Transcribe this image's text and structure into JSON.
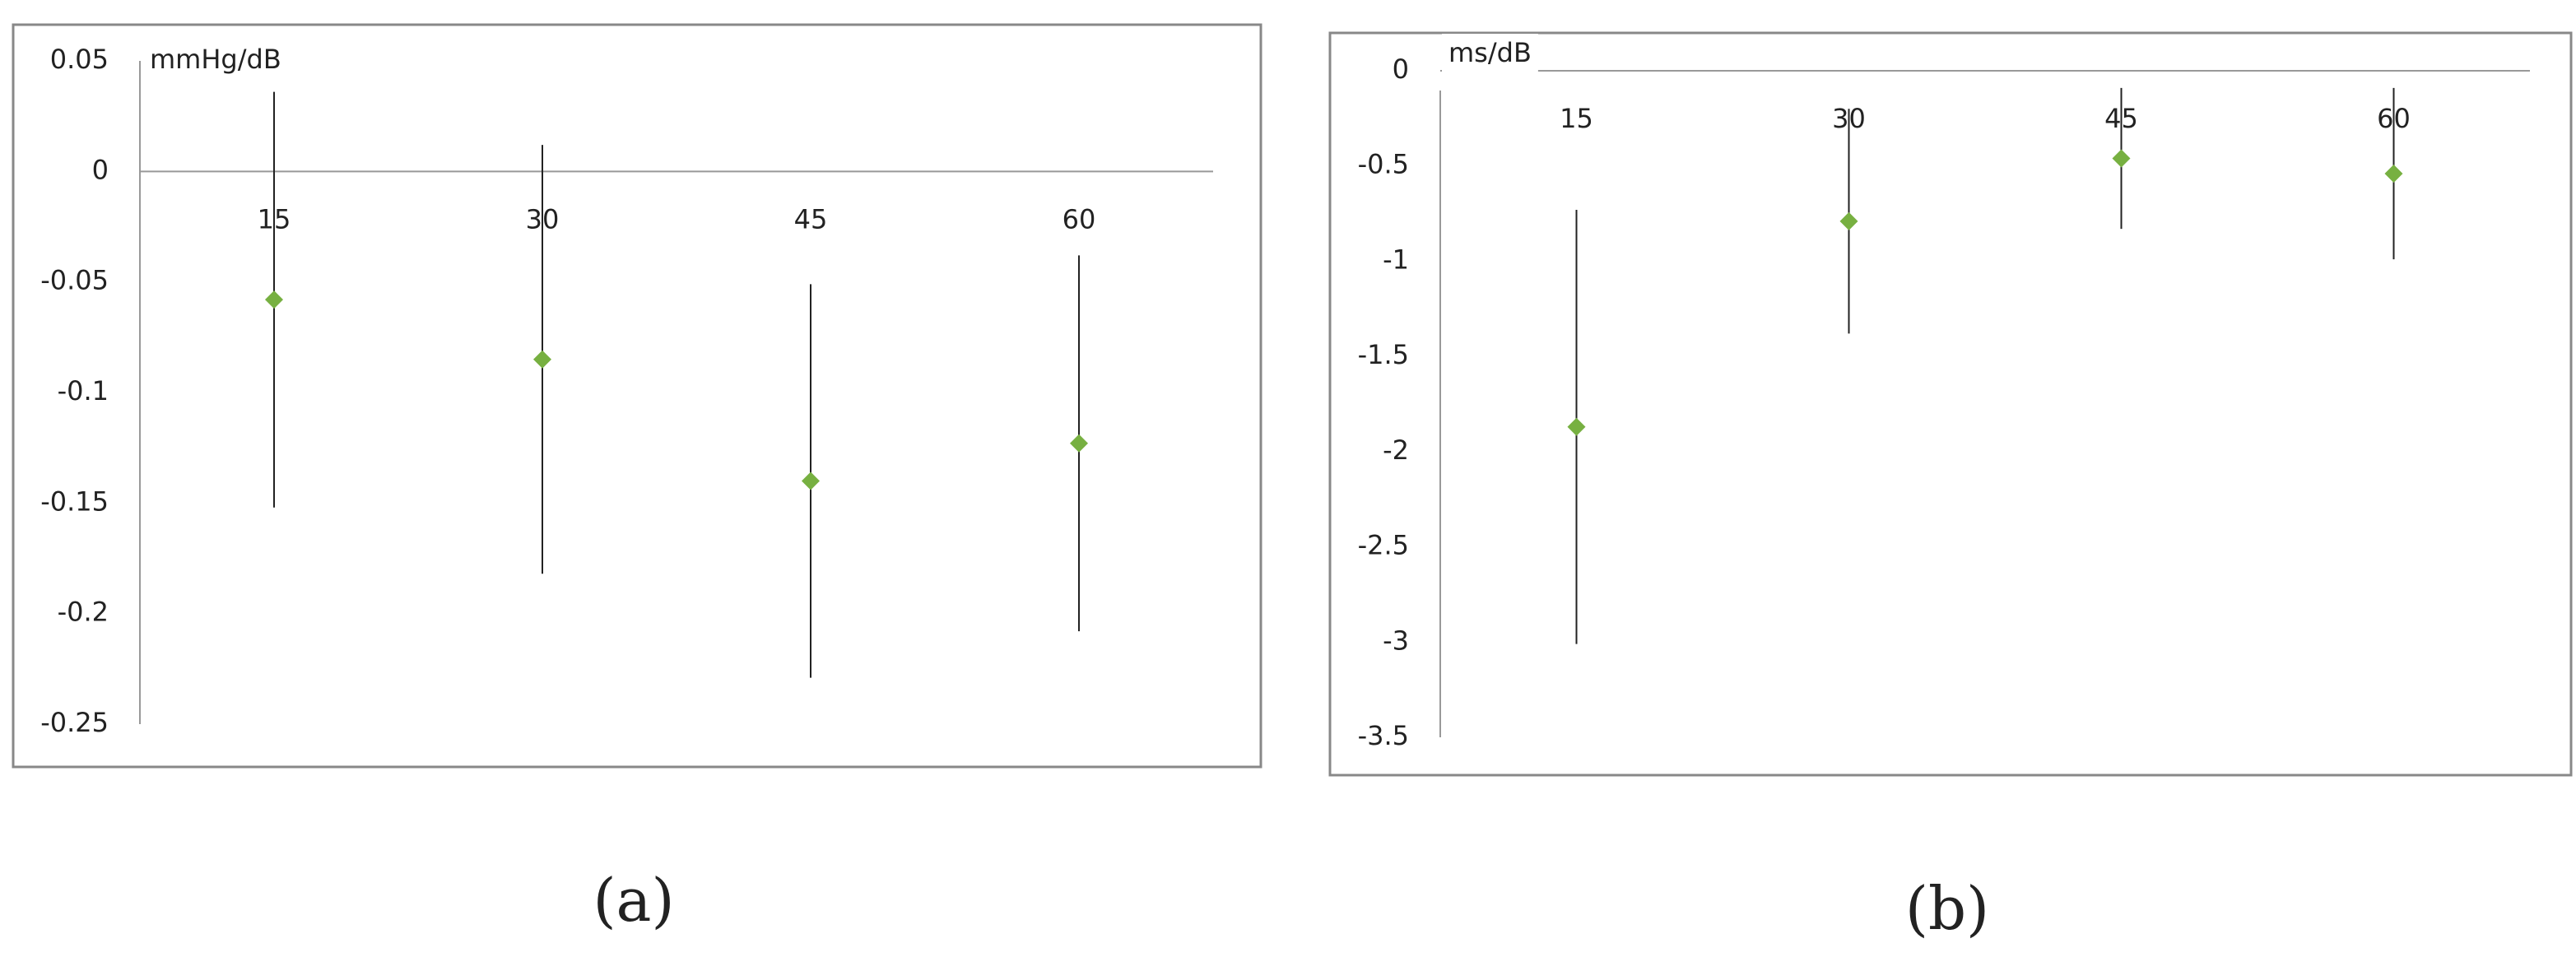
{
  "chart_data": [
    {
      "type": "errorbar",
      "caption": "(a)",
      "ylabel": "mmHg/dB",
      "categories": [
        "15",
        "30",
        "45",
        "60"
      ],
      "series": [
        {
          "color": "#77b041",
          "values": [
            -0.058,
            -0.085,
            -0.14,
            -0.123
          ],
          "errors": [
            0.094,
            0.097,
            0.089,
            0.085
          ]
        }
      ],
      "error_color": "#222222",
      "ylim": [
        -0.25,
        0.05
      ],
      "yticks": [
        0.05,
        0,
        -0.05,
        -0.1,
        -0.15,
        -0.2,
        -0.25
      ]
    },
    {
      "type": "errorbar",
      "caption": "(b)",
      "ylabel": "ms/dB",
      "categories": [
        "15",
        "30",
        "45",
        "60"
      ],
      "series": [
        {
          "color": "#77b041",
          "values": [
            -1.87,
            -0.79,
            -0.46,
            -0.54
          ],
          "errors": [
            1.14,
            0.59,
            0.37,
            0.45
          ]
        }
      ],
      "error_color": "#222222",
      "ylim": [
        -3.5,
        0
      ],
      "yticks": [
        0,
        -0.5,
        -1,
        -1.5,
        -2,
        -2.5,
        -3,
        -3.5
      ]
    }
  ]
}
